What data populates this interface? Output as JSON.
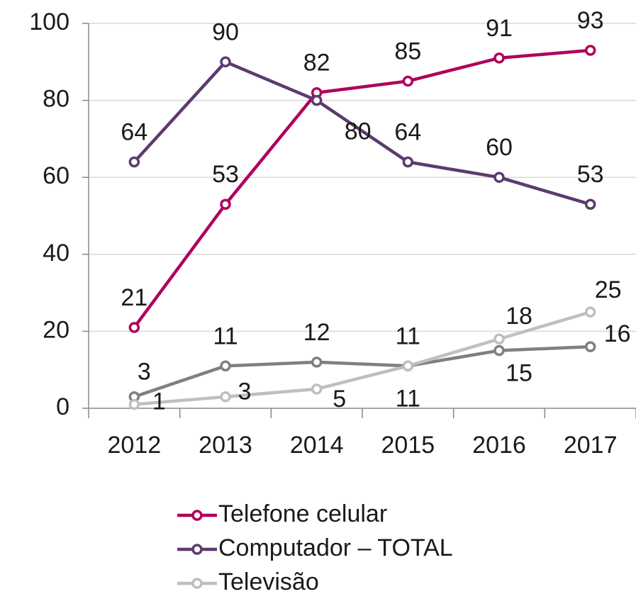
{
  "chart_data": {
    "type": "line",
    "categories": [
      "2012",
      "2013",
      "2014",
      "2015",
      "2016",
      "2017"
    ],
    "series": [
      {
        "name": "Telefone celular",
        "color": "#b0005b",
        "values": [
          21,
          53,
          82,
          85,
          91,
          93
        ]
      },
      {
        "name": "Computador – TOTAL",
        "color": "#5c3a6e",
        "values": [
          64,
          90,
          80,
          64,
          60,
          53
        ]
      },
      {
        "color": "#7f7f7f",
        "values": [
          3,
          11,
          12,
          11,
          15,
          16
        ]
      },
      {
        "name": "Televisão",
        "color": "#bfbfbf",
        "values": [
          1,
          3,
          5,
          11,
          18,
          25
        ]
      }
    ],
    "ylim": [
      0,
      100
    ],
    "yticks": [
      0,
      20,
      40,
      60,
      80,
      100
    ],
    "grid": true
  }
}
